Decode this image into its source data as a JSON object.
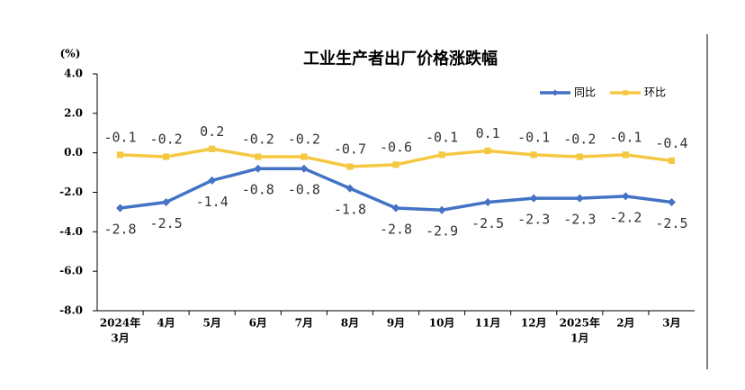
{
  "chart_data": {
    "type": "line",
    "title": "工业生产者出厂价格涨跌幅",
    "y_label": "(%)",
    "categories": [
      [
        "2024年",
        "3月"
      ],
      "4月",
      "5月",
      "6月",
      "7月",
      "8月",
      "9月",
      "10月",
      "11月",
      "12月",
      [
        "2025年",
        "1月"
      ],
      "2月",
      "3月"
    ],
    "series": [
      {
        "name": "同比",
        "color": "#4472c4",
        "marker": "diamond",
        "values": [
          -2.8,
          -2.5,
          -1.4,
          -0.8,
          -0.8,
          -1.8,
          -2.8,
          -2.9,
          -2.5,
          -2.3,
          -2.3,
          -2.2,
          -2.5
        ]
      },
      {
        "name": "环比",
        "color": "#f5c842",
        "marker": "square",
        "values": [
          -0.1,
          -0.2,
          0.2,
          -0.2,
          -0.2,
          -0.7,
          -0.6,
          -0.1,
          0.1,
          -0.1,
          -0.2,
          -0.1,
          -0.4
        ]
      }
    ],
    "ylim": [
      -8,
      4
    ],
    "yticks": [
      {
        "value": -8,
        "label": "-8.0"
      },
      {
        "value": -6,
        "label": "-6.0"
      },
      {
        "value": -4,
        "label": "-4.0"
      },
      {
        "value": -2,
        "label": "-2.0"
      },
      {
        "value": 0,
        "label": "0.0"
      },
      {
        "value": 2,
        "label": "2.0"
      },
      {
        "value": 4,
        "label": "4.0"
      }
    ],
    "legend": "top-right"
  }
}
